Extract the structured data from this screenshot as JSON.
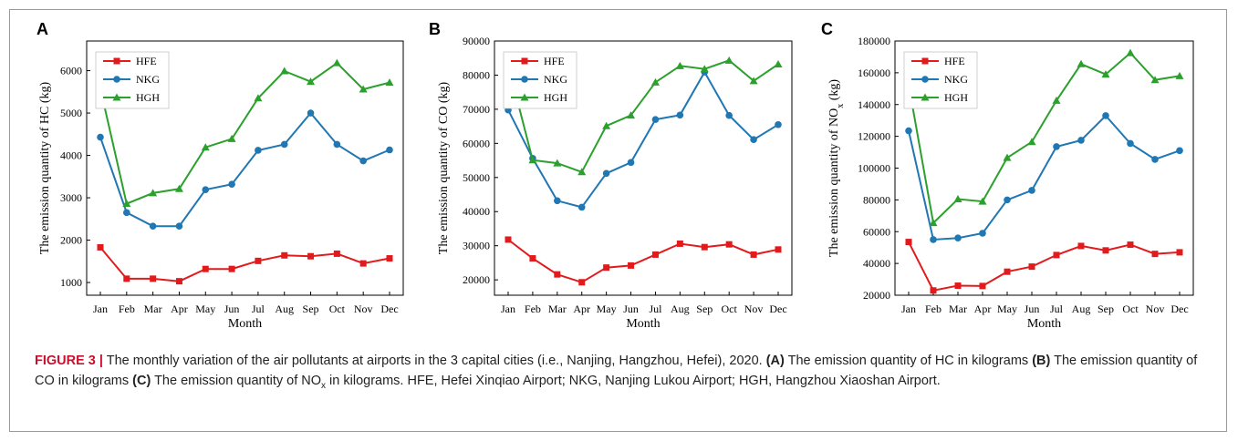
{
  "chart_data": [
    {
      "panel": "A",
      "type": "line",
      "categories": [
        "Jan",
        "Feb",
        "Mar",
        "Apr",
        "May",
        "Jun",
        "Jul",
        "Aug",
        "Sep",
        "Oct",
        "Nov",
        "Dec"
      ],
      "xlabel": "Month",
      "ylabel": "The emission quantity of HC (kg)",
      "ylim": [
        700,
        6700
      ],
      "yticks": [
        1000,
        2000,
        3000,
        4000,
        5000,
        6000
      ],
      "ytick_labels": [
        "1000",
        "2000",
        "3000",
        "4000",
        "5000",
        "6000"
      ],
      "grid": false,
      "legend_position": "top-left",
      "series": [
        {
          "name": "HFE",
          "color": "#e31a1c",
          "marker": "square",
          "values": [
            1830,
            1090,
            1090,
            1030,
            1320,
            1320,
            1510,
            1640,
            1620,
            1680,
            1450,
            1570
          ]
        },
        {
          "name": "NKG",
          "color": "#1f77b4",
          "marker": "circle",
          "values": [
            4430,
            2650,
            2330,
            2330,
            3190,
            3320,
            4120,
            4260,
            5000,
            4260,
            3870,
            4130
          ]
        },
        {
          "name": "HGH",
          "color": "#2ca02c",
          "marker": "triangle",
          "values": [
            5580,
            2860,
            3110,
            3210,
            4190,
            4390,
            5350,
            5990,
            5740,
            6180,
            5560,
            5720
          ]
        }
      ]
    },
    {
      "panel": "B",
      "type": "line",
      "categories": [
        "Jan",
        "Feb",
        "Mar",
        "Apr",
        "May",
        "Jun",
        "Jul",
        "Aug",
        "Sep",
        "Oct",
        "Nov",
        "Dec"
      ],
      "xlabel": "Month",
      "ylabel": "The emission quantity of CO (kg)",
      "ylim": [
        15500,
        90000
      ],
      "yticks": [
        20000,
        30000,
        40000,
        50000,
        60000,
        70000,
        80000,
        90000
      ],
      "ytick_labels": [
        "20000",
        "30000",
        "40000",
        "50000",
        "60000",
        "70000",
        "80000",
        "90000"
      ],
      "grid": false,
      "legend_position": "top-left",
      "series": [
        {
          "name": "HFE",
          "color": "#e31a1c",
          "marker": "square",
          "values": [
            31800,
            26300,
            21600,
            19300,
            23600,
            24200,
            27400,
            30600,
            29600,
            30400,
            27400,
            28900
          ]
        },
        {
          "name": "NKG",
          "color": "#1f77b4",
          "marker": "circle",
          "values": [
            69800,
            55600,
            43200,
            41300,
            51200,
            54400,
            67000,
            68300,
            80900,
            68200,
            61100,
            65500
          ]
        },
        {
          "name": "HGH",
          "color": "#2ca02c",
          "marker": "triangle",
          "values": [
            83000,
            55100,
            54200,
            51600,
            65100,
            68200,
            77900,
            82700,
            81800,
            84300,
            78300,
            83200
          ]
        }
      ]
    },
    {
      "panel": "C",
      "type": "line",
      "categories": [
        "Jan",
        "Feb",
        "Mar",
        "Apr",
        "May",
        "Jun",
        "Jul",
        "Aug",
        "Sep",
        "Oct",
        "Nov",
        "Dec"
      ],
      "xlabel": "Month",
      "ylabel_main": "The emission quantity of NO",
      "ylabel_sub": "x",
      "ylabel_tail": " (kg)",
      "ylim": [
        20000,
        180000
      ],
      "yticks": [
        20000,
        40000,
        60000,
        80000,
        100000,
        120000,
        140000,
        160000,
        180000
      ],
      "ytick_labels": [
        "20000",
        "40000",
        "60000",
        "80000",
        "100000",
        "120000",
        "140000",
        "160000",
        "180000"
      ],
      "grid": false,
      "legend_position": "top-left",
      "series": [
        {
          "name": "HFE",
          "color": "#e31a1c",
          "marker": "square",
          "values": [
            53500,
            23000,
            26000,
            25800,
            34800,
            38000,
            45300,
            51000,
            48200,
            51800,
            46000,
            47000
          ]
        },
        {
          "name": "NKG",
          "color": "#1f77b4",
          "marker": "circle",
          "values": [
            123500,
            55000,
            56000,
            59000,
            80000,
            86000,
            113500,
            117500,
            133000,
            115500,
            105500,
            111000
          ]
        },
        {
          "name": "HGH",
          "color": "#2ca02c",
          "marker": "triangle",
          "values": [
            152500,
            65500,
            80500,
            79000,
            106500,
            116500,
            142500,
            165500,
            159000,
            172500,
            155500,
            158000
          ]
        }
      ]
    }
  ],
  "caption": {
    "label": "FIGURE 3 |",
    "text1": " The monthly variation of the air pollutants at airports in the 3 capital cities (i.e., Nanjing, Hangzhou, Hefei), 2020. ",
    "a": "(A)",
    "text2": " The emission quantity of HC in kilograms ",
    "b": "(B)",
    "text3": " The emission quantity of CO in kilograms ",
    "c": "(C)",
    "text4_main": " The emission quantity of NO",
    "text4_sub": "x",
    "text4_tail": " in kilograms. HFE, Hefei Xinqiao Airport; NKG, Nanjing Lukou Airport; HGH, Hangzhou Xiaoshan Airport."
  }
}
